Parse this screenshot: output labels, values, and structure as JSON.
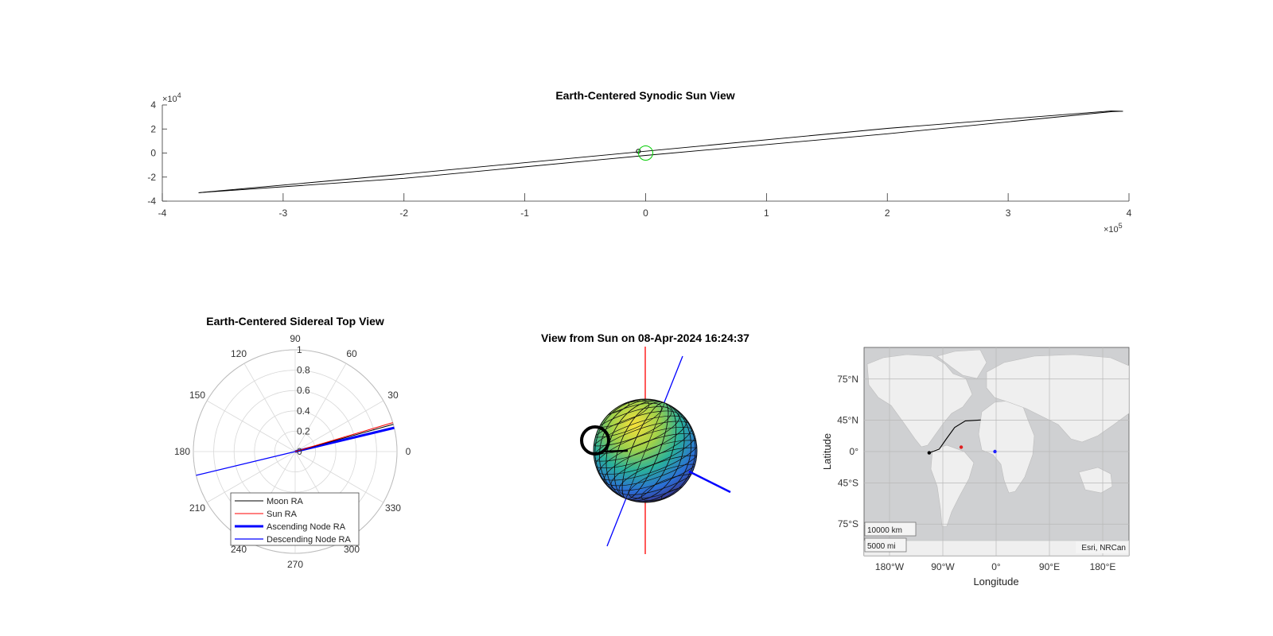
{
  "chart_data": [
    {
      "type": "line",
      "title": "Earth-Centered Synodic Sun View",
      "xlim": [
        -400000,
        400000
      ],
      "ylim": [
        -40000,
        40000
      ],
      "x_ticks": [
        -4,
        -3,
        -2,
        -1,
        0,
        1,
        2,
        3,
        4
      ],
      "y_ticks": [
        4,
        2,
        0,
        -2,
        -4
      ],
      "x_multiplier": "×10",
      "x_exponent": "5",
      "y_multiplier": "×10",
      "y_exponent": "4",
      "trajectory_outer": [
        [
          -370000,
          -33000
        ],
        [
          -200000,
          -17500
        ],
        [
          0,
          1500
        ],
        [
          200000,
          20500
        ],
        [
          385000,
          35000
        ],
        [
          395000,
          34800
        ]
      ],
      "trajectory_inner": [
        [
          395000,
          34800
        ],
        [
          385000,
          34400
        ],
        [
          200000,
          16000
        ],
        [
          0,
          -2000
        ],
        [
          -200000,
          -21000
        ],
        [
          -370000,
          -33000
        ]
      ],
      "earth_marker": [
        -6000,
        1500
      ],
      "sun_circle_center": [
        0,
        0
      ],
      "sun_circle_color": "#00cc00"
    },
    {
      "type": "polar",
      "title": "Earth-Centered Sidereal Top View",
      "angle_ticks": [
        "0",
        "30",
        "60",
        "90",
        "120",
        "150",
        "180",
        "210",
        "240",
        "270",
        "300",
        "330"
      ],
      "r_ticks": [
        "0",
        "0.2",
        "0.4",
        "0.6",
        "0.8",
        "1"
      ],
      "series": [
        {
          "name": "Moon RA",
          "angle_deg": 15.5,
          "r": 1,
          "color": "#000000",
          "width": 1
        },
        {
          "name": "Sun RA",
          "angle_deg": 16.5,
          "r": 1,
          "color": "#ff0000",
          "width": 1
        },
        {
          "name": "Ascending Node RA",
          "angle_deg": 13.5,
          "r": 1,
          "color": "#0000ff",
          "width": 3
        },
        {
          "name": "Descending Node RA",
          "angle_deg": 193.5,
          "r": 1,
          "color": "#0000ff",
          "width": 1.2
        }
      ],
      "legend_location": "bottom"
    },
    {
      "type": "3d-globe",
      "title": "View from Sun on 08-Apr-2024 16:24:37"
    },
    {
      "type": "map",
      "xlabel": "Longitude",
      "ylabel": "Latitude",
      "x_ticks": [
        "180°W",
        "90°W",
        "0°",
        "90°E",
        "180°E"
      ],
      "y_ticks": [
        "75°N",
        "45°N",
        "0°",
        "45°S",
        "75°S"
      ],
      "scale_bar": [
        "10000 km",
        "5000 mi"
      ],
      "attribution": "Esri, NRCan",
      "points": [
        {
          "name": "black",
          "lon": -113,
          "lat": -2,
          "color": "#000000"
        },
        {
          "name": "red",
          "lon": -59,
          "lat": 7,
          "color": "#e02020"
        },
        {
          "name": "blue",
          "lon": -2,
          "lat": 0,
          "color": "#2020ff"
        }
      ],
      "track": [
        [
          -113,
          -2
        ],
        [
          -96,
          4
        ],
        [
          -84,
          20
        ],
        [
          -70,
          36
        ],
        [
          -52,
          44
        ],
        [
          -26,
          45
        ]
      ]
    }
  ]
}
